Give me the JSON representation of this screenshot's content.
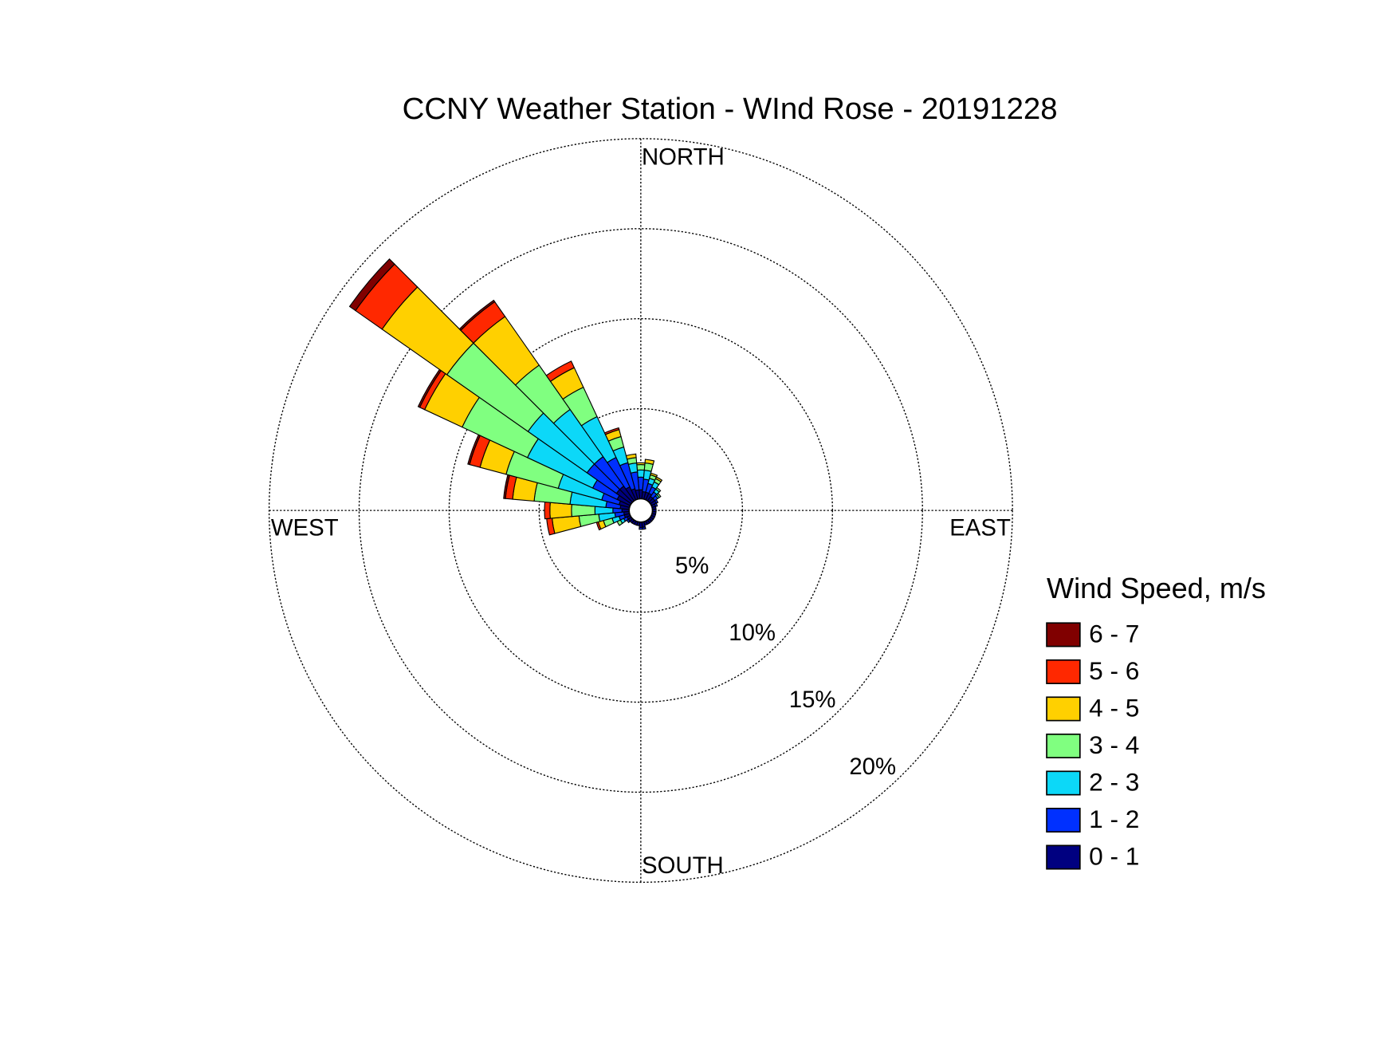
{
  "chart_data": {
    "type": "windrose",
    "title": "CCNY Weather Station - WInd Rose - 20191228",
    "legend_title": "Wind Speed, m/s",
    "compass_labels": {
      "north": "NORTH",
      "east": "EAST",
      "south": "SOUTH",
      "west": "WEST"
    },
    "x": [
      0,
      10,
      20,
      30,
      40,
      50,
      60,
      70,
      80,
      90,
      100,
      110,
      120,
      130,
      140,
      150,
      160,
      170,
      180,
      190,
      200,
      210,
      220,
      230,
      240,
      250,
      260,
      270,
      280,
      290,
      300,
      310,
      320,
      330,
      340,
      350
    ],
    "rlim": [
      0,
      20
    ],
    "rticks": [
      {
        "value": 5,
        "label": "5%"
      },
      {
        "value": 10,
        "label": "10%"
      },
      {
        "value": 15,
        "label": "15%"
      },
      {
        "value": 20,
        "label": "20%"
      }
    ],
    "series": [
      {
        "name": "0 - 1",
        "color": "#000080",
        "values": [
          0.5,
          0.4,
          0.4,
          0.4,
          0.3,
          0.3,
          0.3,
          0.2,
          0.2,
          0.2,
          0.2,
          0.2,
          0.2,
          0.2,
          0.2,
          0.2,
          0.2,
          0.3,
          0.3,
          0.2,
          0.2,
          0.2,
          0.2,
          0.2,
          0.2,
          0.3,
          0.3,
          0.4,
          0.5,
          0.6,
          0.8,
          1.0,
          1.0,
          0.8,
          0.6,
          0.5
        ]
      },
      {
        "name": "1 - 2",
        "color": "#0030ff",
        "values": [
          0.7,
          0.7,
          0.5,
          0.4,
          0.3,
          0.2,
          0.1,
          0.1,
          0,
          0,
          0,
          0,
          0,
          0,
          0,
          0,
          0,
          0.1,
          0.1,
          0,
          0,
          0,
          0,
          0.1,
          0.2,
          0.3,
          0.5,
          0.5,
          0.8,
          1.0,
          1.5,
          2.0,
          2.0,
          1.8,
          1.5,
          1.0
        ]
      },
      {
        "name": "2 - 3",
        "color": "#0cd8f8",
        "values": [
          0.4,
          0.5,
          0.3,
          0.3,
          0.2,
          0.1,
          0,
          0,
          0,
          0,
          0,
          0,
          0,
          0,
          0,
          0,
          0,
          0,
          0,
          0,
          0,
          0,
          0,
          0,
          0.2,
          0.4,
          0.9,
          1.0,
          2.0,
          2.5,
          4.0,
          4.0,
          3.2,
          2.5,
          0.9,
          0.5
        ]
      },
      {
        "name": "3 - 4",
        "color": "#80ff80",
        "values": [
          0.3,
          0.4,
          0.2,
          0.2,
          0.1,
          0.1,
          0,
          0,
          0,
          0,
          0,
          0,
          0,
          0,
          0,
          0,
          0,
          0,
          0,
          0,
          0,
          0,
          0,
          0,
          0.2,
          0.5,
          1.1,
          1.3,
          2.0,
          3.0,
          4.0,
          5.5,
          3.0,
          1.8,
          0.6,
          0.3
        ]
      },
      {
        "name": "4 - 5",
        "color": "#ffd000",
        "values": [
          0.1,
          0.2,
          0.1,
          0.1,
          0,
          0,
          0,
          0,
          0,
          0,
          0,
          0,
          0,
          0,
          0,
          0,
          0,
          0,
          0,
          0,
          0,
          0,
          0,
          0,
          0,
          0.3,
          1.5,
          1.2,
          1.2,
          1.5,
          2.3,
          4.4,
          3.3,
          1.2,
          0.4,
          0.2
        ]
      },
      {
        "name": "5 - 6",
        "color": "#ff2800",
        "values": [
          0,
          0,
          0,
          0,
          0,
          0,
          0,
          0,
          0,
          0,
          0,
          0,
          0,
          0,
          0,
          0,
          0,
          0,
          0,
          0,
          0,
          0,
          0,
          0,
          0,
          0.1,
          0.3,
          0.3,
          0.4,
          0.6,
          0.3,
          1.8,
          1.0,
          0.4,
          0.1,
          0
        ]
      },
      {
        "name": "6 - 7",
        "color": "#800000",
        "values": [
          0,
          0,
          0,
          0,
          0,
          0,
          0,
          0,
          0,
          0,
          0,
          0,
          0,
          0,
          0,
          0,
          0,
          0,
          0,
          0,
          0,
          0,
          0,
          0,
          0,
          0,
          0,
          0,
          0.1,
          0.1,
          0.1,
          0.4,
          0.1,
          0,
          0,
          0
        ]
      }
    ]
  }
}
